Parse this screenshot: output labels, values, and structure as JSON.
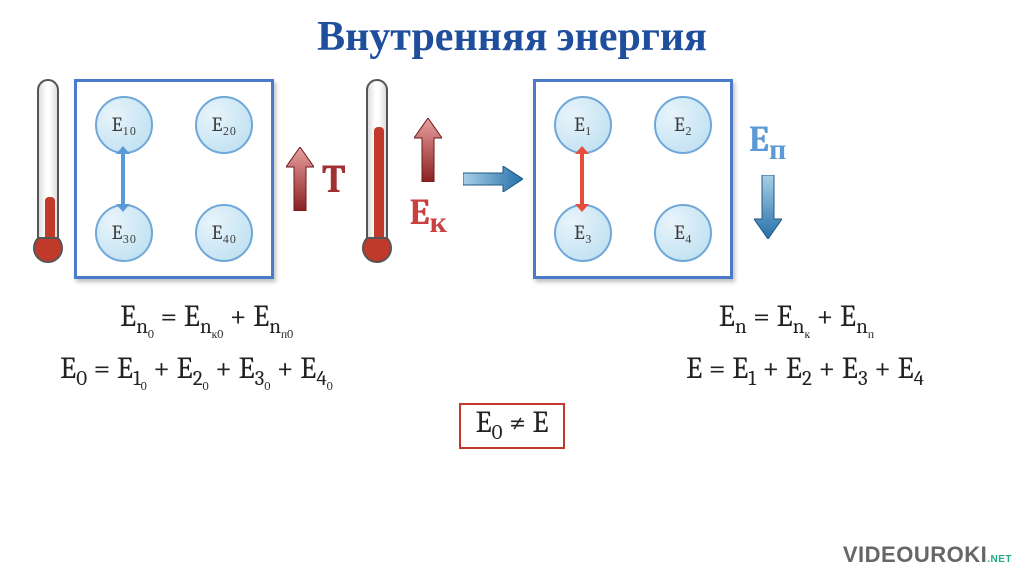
{
  "title": "Внутренняя энергия",
  "colors": {
    "title": "#1f4e9c",
    "box_border": "#4a7bc8",
    "particle_fill": "radial-gradient(circle at 30% 30%, #e8f4fb, #b8ddef)",
    "particle_border": "#6fa8d8",
    "particle_text": "#3c3c3c",
    "thermo_red": "#c0392b",
    "arrow_blue": "#5b9bd5",
    "arrow_red": "#e74c3c",
    "t_label": "#a23030",
    "ek_label": "#c84040",
    "ep_label": "#5b9bd5",
    "red_arrow_grad_top": "#e8a0a0",
    "red_arrow_grad_bot": "#8b2020",
    "blue_arrow_grad_left": "#a8d0e8",
    "blue_arrow_grad_right": "#2570a8",
    "boxed_border": "#c0392b"
  },
  "left_box": {
    "particles": {
      "tl": "E₁₀",
      "tr": "E₂₀",
      "bl": "E₃₀",
      "br": "E₄₀"
    },
    "arrow_color": "#5b9bd5"
  },
  "right_box": {
    "particles": {
      "tl": "E₁",
      "tr": "E₂",
      "bl": "E₃",
      "br": "E₄"
    },
    "arrow_color": "#e74c3c"
  },
  "thermo": {
    "low_fill_height": 40,
    "high_fill_height": 110,
    "fill_color": "#c0392b",
    "bulb_color": "#c0392b"
  },
  "labels": {
    "t": "T",
    "ek_html": "E<sub>к</sub>",
    "ep_html": "E<sub>п</sub>"
  },
  "formulas": {
    "f1_left": "E<sub class='s1'>n<sub class='s2'>0</sub></sub> = E<sub class='s1'>n<sub class='s2'>к0</sub></sub> + E<sub class='s1'>n<sub class='s2'>п0</sub></sub>",
    "f1_right": "E<sub class='s1'>n</sub> = E<sub class='s1'>n<sub class='s2'>к</sub></sub> + E<sub class='s1'>n<sub class='s2'>п</sub></sub>",
    "f2_left": "E<sub class='s1'>0</sub> = E<sub class='s1'>1<sub class='s2'>0</sub></sub> + E<sub class='s1'>2<sub class='s2'>0</sub></sub> + E<sub class='s1'>3<sub class='s2'>0</sub></sub> + E<sub class='s1'>4<sub class='s2'>0</sub></sub>",
    "f2_right": "E = E<sub class='s1'>1</sub> + E<sub class='s1'>2</sub> + E<sub class='s1'>3</sub> + E<sub class='s1'>4</sub>",
    "f3_boxed": "E<sub class='s1'>0</sub> ≠ E"
  },
  "watermark": "VIDEOUROKI"
}
